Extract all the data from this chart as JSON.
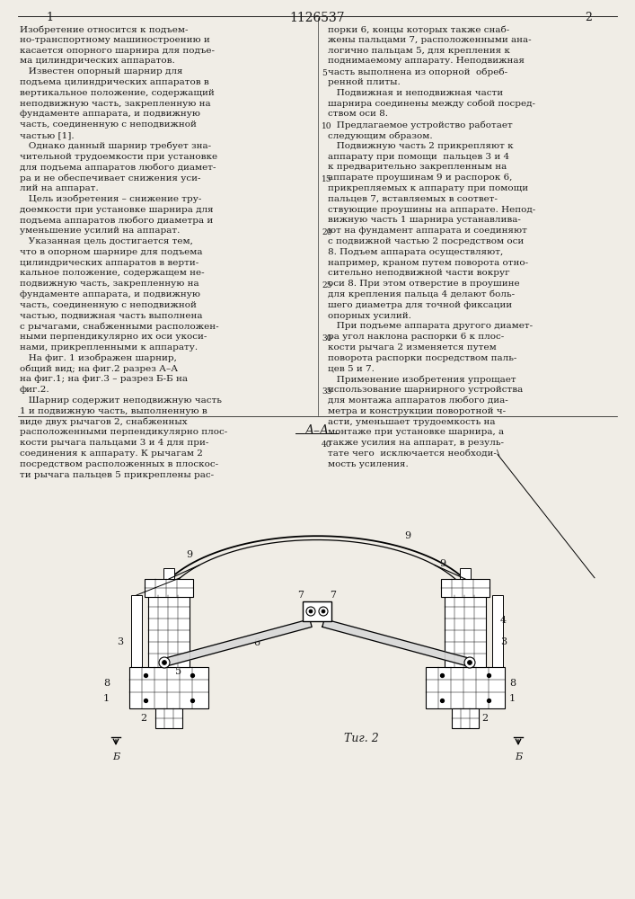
{
  "bg_color": "#f0ede6",
  "text_color": "#1a1a1a",
  "patent_number": "1126537",
  "col1_num": "1",
  "col2_num": "2",
  "fig_caption": "Τиг. 2",
  "section_label": "A–A",
  "B_label": "Б",
  "line_numbers": [
    5,
    10,
    15,
    20,
    25,
    30,
    35,
    40
  ],
  "left_text": [
    "Изобретение относится к подъем-",
    "но-транспортному машиностроению и",
    "касается опорного шарнира для подъе-",
    "ма цилиндрических аппаратов.",
    "   Известен опорный шарнир для",
    "подъема цилиндрических аппаратов в",
    "вертикальное положение, содержащий",
    "неподвижную часть, закрепленную на",
    "фундаменте аппарата, и подвижную",
    "часть, соединенную с неподвижной",
    "частью [1].",
    "   Однако данный шарнир требует зна-",
    "чительной трудоемкости при установке",
    "для подъема аппаратов любого диамет-",
    "ра и не обеспечивает снижения уси-",
    "лий на аппарат.",
    "   Цель изобретения – снижение тру-",
    "доемкости при установке шарнира для",
    "подъема аппаратов любого диаметра и",
    "уменьшение усилий на аппарат.",
    "   Указанная цель достигается тем,",
    "что в опорном шарнире для подъема",
    "цилиндрических аппаратов в верти-",
    "кальное положение, содержащем не-",
    "подвижную часть, закрепленную на",
    "фундаменте аппарата, и подвижную",
    "часть, соединенную с неподвижной",
    "частью, подвижная часть выполнена",
    "с рычагами, снабженными расположен-",
    "ными перпендикулярно их оси укоси-",
    "нами, прикрепленными к аппарату.",
    "   На фиг. 1 изображен шарнир,",
    "общий вид; на фиг.2 разрез А–А",
    "на фиг.1; на фиг.3 – разрез Б-Б на",
    "фиг.2.",
    "   Шарнир содержит неподвижную часть",
    "1 и подвижную часть, выполненную в",
    "виде двух рычагов 2, снабженных",
    "расположенными перпендикулярно плос-",
    "кости рычага пальцами 3 и 4 для при-",
    "соединения к аппарату. К рычагам 2",
    "посредством расположенных в плоскос-",
    "ти рычага пальцев 5 прикреплены рас-"
  ],
  "right_text": [
    "порки 6, концы которых также снаб-",
    "жены пальцами 7, расположенными ана-",
    "логично пальцам 5, для крепления к",
    "поднимаемому аппарату. Неподвижная",
    "часть выполнена из опорной  обреб-",
    "ренной плиты.",
    "   Подвижная и неподвижная части",
    "шарнира соединены между собой посред-",
    "ством оси 8.",
    "   Предлагаемое устройство работает",
    "следующим образом.",
    "   Подвижную часть 2 прикрепляют к",
    "аппарату при помощи  пальцев 3 и 4",
    "к предварительно закрепленным на",
    "аппарате проушинам 9 и распорок 6,",
    "прикрепляемых к аппарату при помощи",
    "пальцев 7, вставляемых в соответ-",
    "ствующие проушины на аппарате. Непод-",
    "вижную часть 1 шарнира устанавлива-",
    "ют на фундамент аппарата и соединяют",
    "с подвижной частью 2 посредством оси",
    "8. Подъем аппарата осуществляют,",
    "например, краном путем поворота отно-",
    "сительно неподвижной части вокруг",
    "оси 8. При этом отверстие в проушине",
    "для крепления пальца 4 делают боль-",
    "шего диаметра для точной фиксации",
    "опорных усилий.",
    "   При подъеме аппарата другого диамет-",
    "ра угол наклона распорки 6 к плос-",
    "кости рычага 2 изменяется путем",
    "поворота распорки посредством паль-",
    "цев 5 и 7.",
    "   Применение изобретения упрощает",
    "использование шарнирного устройства",
    "для монтажа аппаратов любого диа-",
    "метра и конструкции поворотной ч-",
    "асти, уменьшает трудоемкость на",
    "монтаже при установке шарнира, а",
    "также усилия на аппарат, в резуль-",
    "тате чего  исключается необходи-\\",
    "мость усиления."
  ]
}
